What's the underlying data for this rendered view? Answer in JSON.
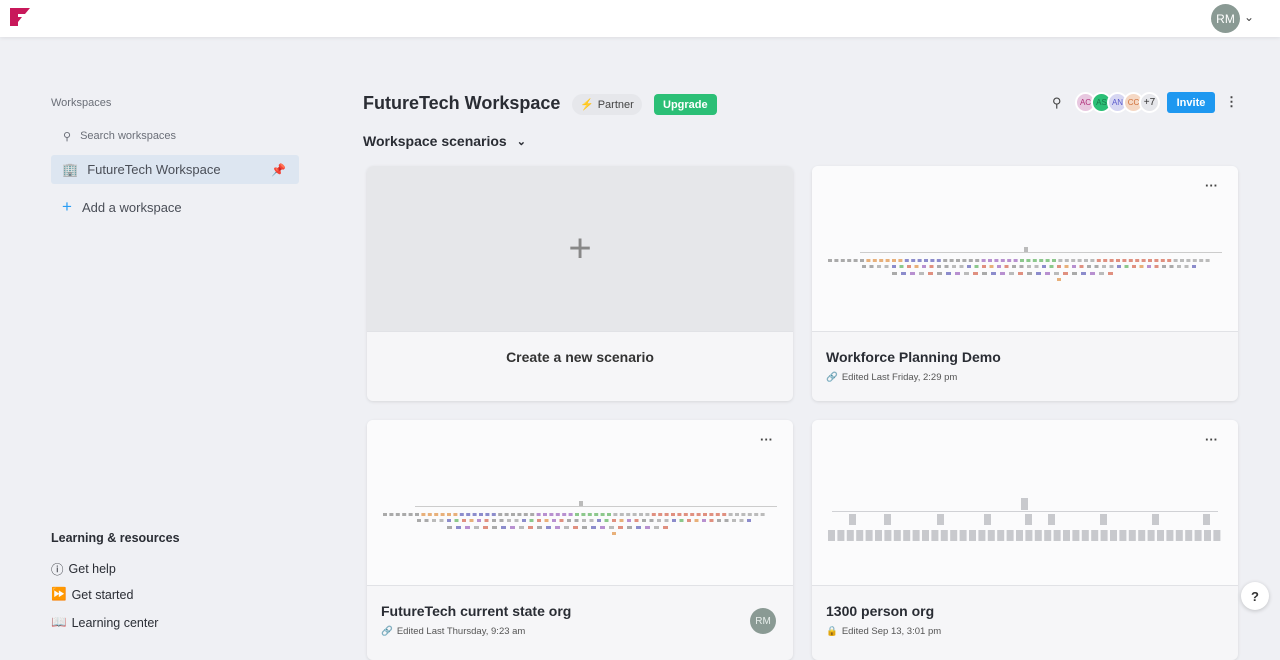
{
  "header": {
    "user_initials": "RM"
  },
  "sidebar": {
    "label": "Workspaces",
    "search_placeholder": "Search workspaces",
    "workspaces": [
      {
        "name": "FutureTech Workspace"
      }
    ],
    "add_label": "Add a workspace",
    "learning": {
      "heading": "Learning & resources",
      "items": [
        {
          "label": "Get help",
          "icon": "help-circle-icon"
        },
        {
          "label": "Get started",
          "icon": "fast-forward-icon"
        },
        {
          "label": "Learning center",
          "icon": "book-icon"
        }
      ]
    }
  },
  "main": {
    "title": "FutureTech Workspace",
    "partner_label": "Partner",
    "upgrade_label": "Upgrade",
    "invite_label": "Invite",
    "members": [
      {
        "initials": "AC",
        "bg": "#e8c8e0",
        "fg": "#b0307a"
      },
      {
        "initials": "AS",
        "bg": "#2bbf76",
        "fg": "#1b7a4b"
      },
      {
        "initials": "AN",
        "bg": "#d6d6f2",
        "fg": "#5a5acc"
      },
      {
        "initials": "CC",
        "bg": "#f5d8c4",
        "fg": "#d0703a"
      }
    ],
    "more_members": "+7",
    "section_title": "Workspace scenarios",
    "create_label": "Create a new scenario",
    "scenarios": [
      {
        "name": "Workforce Planning Demo",
        "meta": "Edited Last Friday, 2:29 pm",
        "icon": "link-icon"
      },
      {
        "name": "FutureTech current state org",
        "meta": "Edited Last Thursday, 9:23 am",
        "icon": "link-icon",
        "owner": "RM"
      },
      {
        "name": "1300 person org",
        "meta": "Edited Sep 13, 3:01 pm",
        "icon": "lock-icon"
      }
    ]
  },
  "colors": {
    "accent": "#1e98f0",
    "upgrade": "#2bbf76",
    "brand": "#c8185a"
  }
}
